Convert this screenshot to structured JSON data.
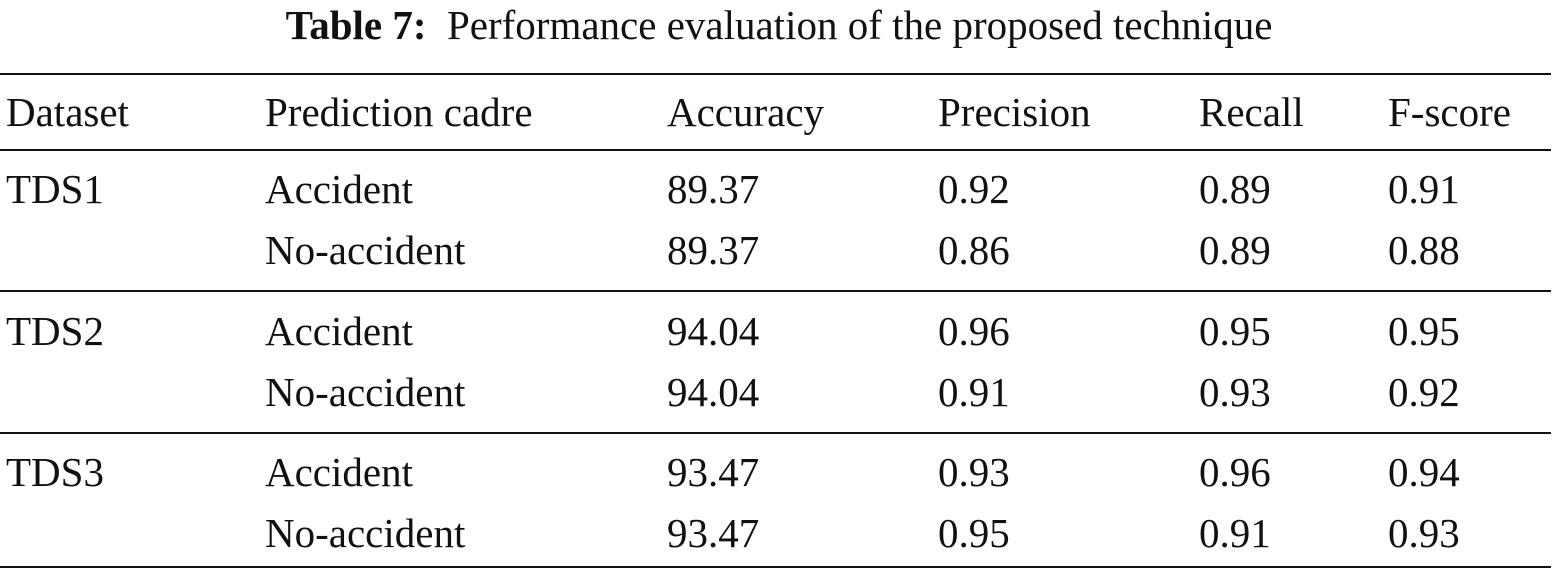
{
  "caption": {
    "label": "Table 7:",
    "text": "Performance evaluation of the proposed technique"
  },
  "headers": [
    "Dataset",
    "Prediction cadre",
    "Accuracy",
    "Precision",
    "Recall",
    "F-score"
  ],
  "groups": [
    {
      "dataset": "TDS1",
      "rows": [
        {
          "cadre": "Accident",
          "accuracy": "89.37",
          "precision": "0.92",
          "recall": "0.89",
          "fscore": "0.91"
        },
        {
          "cadre": "No-accident",
          "accuracy": "89.37",
          "precision": "0.86",
          "recall": "0.89",
          "fscore": "0.88"
        }
      ]
    },
    {
      "dataset": "TDS2",
      "rows": [
        {
          "cadre": "Accident",
          "accuracy": "94.04",
          "precision": "0.96",
          "recall": "0.95",
          "fscore": "0.95"
        },
        {
          "cadre": "No-accident",
          "accuracy": "94.04",
          "precision": "0.91",
          "recall": "0.93",
          "fscore": "0.92"
        }
      ]
    },
    {
      "dataset": "TDS3",
      "rows": [
        {
          "cadre": "Accident",
          "accuracy": "93.47",
          "precision": "0.93",
          "recall": "0.96",
          "fscore": "0.94"
        },
        {
          "cadre": "No-accident",
          "accuracy": "93.47",
          "precision": "0.95",
          "recall": "0.91",
          "fscore": "0.93"
        }
      ]
    }
  ]
}
